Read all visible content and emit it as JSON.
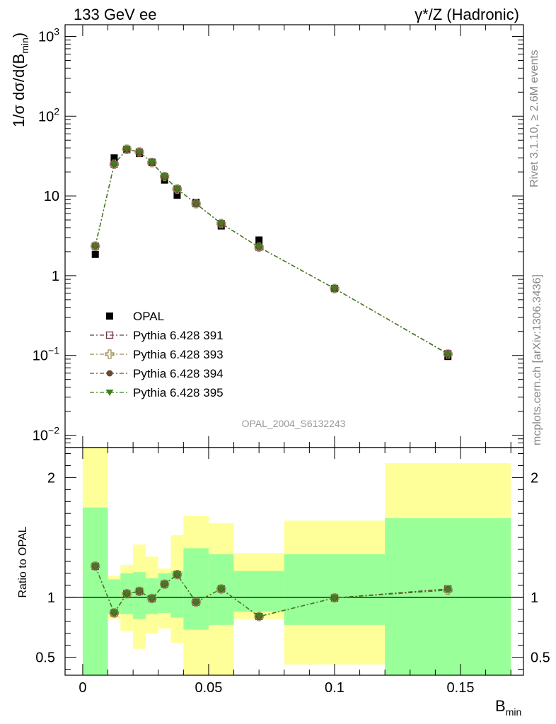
{
  "chart_data": [
    {
      "type": "scatter",
      "panel": "main",
      "title_left": "133 GeV ee",
      "title_right": "γ*/Z (Hadronic)",
      "ylabel": "1/σ dσ/d(B",
      "ylabel_sub": "min",
      "ylabel_end": ")",
      "yscale": "log",
      "ylim": [
        0.007,
        1400
      ],
      "xlim": [
        -0.007,
        0.175
      ],
      "watermark": "OPAL_2004_S6132243",
      "y_ticks": [
        {
          "value": 1000,
          "base": "10",
          "exp": "3"
        },
        {
          "value": 100,
          "base": "10",
          "exp": "2"
        },
        {
          "value": 10,
          "base": "10",
          "exp": ""
        },
        {
          "value": 1,
          "base": "1",
          "exp": ""
        },
        {
          "value": 0.1,
          "base": "10",
          "exp": "−1"
        },
        {
          "value": 0.01,
          "base": "10",
          "exp": "−2"
        }
      ],
      "series": [
        {
          "name": "OPAL",
          "style": "data",
          "color": "#000000",
          "x": [
            0.005,
            0.0125,
            0.0175,
            0.0225,
            0.0275,
            0.0325,
            0.0375,
            0.045,
            0.055,
            0.07,
            0.1,
            0.145
          ],
          "y": [
            1.85,
            30.0,
            38.0,
            34.0,
            26.5,
            15.8,
            10.2,
            8.3,
            4.2,
            2.8,
            0.69,
            0.097
          ]
        },
        {
          "name": "Pythia 6.428 391",
          "style": "open-square",
          "color": "#6b3a4a",
          "x": [
            0.005,
            0.0125,
            0.0175,
            0.0225,
            0.0275,
            0.0325,
            0.0375,
            0.045,
            0.055,
            0.07,
            0.1,
            0.145
          ],
          "y": [
            2.35,
            25.0,
            38.5,
            35.5,
            26.2,
            17.5,
            12.2,
            8.0,
            4.5,
            2.28,
            0.69,
            0.105
          ]
        },
        {
          "name": "Pythia 6.428 393",
          "style": "open-cross",
          "color": "#9a8a50",
          "x": [
            0.005,
            0.0125,
            0.0175,
            0.0225,
            0.0275,
            0.0325,
            0.0375,
            0.045,
            0.055,
            0.07,
            0.1,
            0.145
          ],
          "y": [
            2.35,
            25.0,
            38.5,
            35.5,
            26.2,
            17.5,
            12.2,
            8.0,
            4.5,
            2.28,
            0.69,
            0.104
          ]
        },
        {
          "name": "Pythia 6.428 394",
          "style": "filled-circle",
          "color": "#6b4a2a",
          "x": [
            0.005,
            0.0125,
            0.0175,
            0.0225,
            0.0275,
            0.0325,
            0.0375,
            0.045,
            0.055,
            0.07,
            0.1,
            0.145
          ],
          "y": [
            2.35,
            25.0,
            38.5,
            35.5,
            26.2,
            17.5,
            12.2,
            8.0,
            4.5,
            2.28,
            0.69,
            0.105
          ]
        },
        {
          "name": "Pythia 6.428 395",
          "style": "filled-triangle-down",
          "color": "#3f7f1f",
          "x": [
            0.005,
            0.0125,
            0.0175,
            0.0225,
            0.0275,
            0.0325,
            0.0375,
            0.045,
            0.055,
            0.07,
            0.1,
            0.145
          ],
          "y": [
            2.35,
            25.0,
            38.5,
            35.5,
            26.2,
            17.5,
            12.2,
            8.0,
            4.5,
            2.28,
            0.69,
            0.104
          ]
        }
      ]
    },
    {
      "type": "line",
      "panel": "ratio",
      "ylabel": "Ratio to OPAL",
      "xlabel": "B",
      "xlabel_sub": "min",
      "ylim": [
        0.35,
        2.25
      ],
      "xlim": [
        -0.007,
        0.175
      ],
      "x_ticks": [
        {
          "value": 0,
          "label": "0"
        },
        {
          "value": 0.05,
          "label": "0.05"
        },
        {
          "value": 0.1,
          "label": "0.1"
        },
        {
          "value": 0.15,
          "label": "0.15"
        }
      ],
      "y_ticks": [
        {
          "value": 2,
          "label": "2"
        },
        {
          "value": 1,
          "label": "1"
        },
        {
          "value": 0.5,
          "label": "0.5"
        }
      ],
      "bands": [
        {
          "x0": 0.0,
          "x1": 0.01,
          "green": [
            0.35,
            1.75
          ],
          "yellow": [
            0.35,
            2.25
          ]
        },
        {
          "x0": 0.01,
          "x1": 0.015,
          "green": [
            0.86,
            1.15
          ],
          "yellow": [
            0.82,
            1.18
          ]
        },
        {
          "x0": 0.015,
          "x1": 0.02,
          "green": [
            0.86,
            1.2
          ],
          "yellow": [
            0.72,
            1.27
          ]
        },
        {
          "x0": 0.02,
          "x1": 0.025,
          "green": [
            0.82,
            1.21
          ],
          "yellow": [
            0.57,
            1.44
          ]
        },
        {
          "x0": 0.025,
          "x1": 0.03,
          "green": [
            0.86,
            1.16
          ],
          "yellow": [
            0.7,
            1.34
          ]
        },
        {
          "x0": 0.03,
          "x1": 0.035,
          "green": [
            0.87,
            1.2
          ],
          "yellow": [
            0.74,
            1.24
          ]
        },
        {
          "x0": 0.035,
          "x1": 0.04,
          "green": [
            0.83,
            1.22
          ],
          "yellow": [
            0.62,
            1.52
          ]
        },
        {
          "x0": 0.04,
          "x1": 0.05,
          "green": [
            0.73,
            1.41
          ],
          "yellow": [
            0.35,
            1.68
          ]
        },
        {
          "x0": 0.05,
          "x1": 0.06,
          "green": [
            0.77,
            1.36
          ],
          "yellow": [
            0.35,
            1.62
          ]
        },
        {
          "x0": 0.06,
          "x1": 0.08,
          "green": [
            0.88,
            1.22
          ],
          "yellow": [
            0.82,
            1.37
          ]
        },
        {
          "x0": 0.08,
          "x1": 0.12,
          "green": [
            0.77,
            1.36
          ],
          "yellow": [
            0.44,
            1.64
          ]
        },
        {
          "x0": 0.12,
          "x1": 0.17,
          "green": [
            0.35,
            1.66
          ],
          "yellow": [
            0.35,
            2.12
          ]
        }
      ],
      "series": [
        {
          "name": "Pythia 6.428 391",
          "color": "#6b3a4a",
          "x": [
            0.005,
            0.0125,
            0.0175,
            0.0225,
            0.0275,
            0.0325,
            0.0375,
            0.045,
            0.055,
            0.07,
            0.1,
            0.145
          ],
          "y": [
            1.26,
            0.87,
            1.03,
            1.05,
            0.99,
            1.11,
            1.19,
            0.96,
            1.07,
            0.84,
            0.995,
            1.07
          ]
        },
        {
          "name": "Pythia 6.428 393",
          "color": "#9a8a50",
          "x": [
            0.005,
            0.0125,
            0.0175,
            0.0225,
            0.0275,
            0.0325,
            0.0375,
            0.045,
            0.055,
            0.07,
            0.1,
            0.145
          ],
          "y": [
            1.26,
            0.87,
            1.03,
            1.05,
            0.99,
            1.11,
            1.19,
            0.96,
            1.07,
            0.84,
            0.995,
            1.06
          ]
        },
        {
          "name": "Pythia 6.428 394",
          "color": "#6b4a2a",
          "x": [
            0.005,
            0.0125,
            0.0175,
            0.0225,
            0.0275,
            0.0325,
            0.0375,
            0.045,
            0.055,
            0.07,
            0.1,
            0.145
          ],
          "y": [
            1.26,
            0.87,
            1.03,
            1.05,
            0.99,
            1.11,
            1.19,
            0.96,
            1.07,
            0.84,
            0.995,
            1.07
          ]
        },
        {
          "name": "Pythia 6.428 395",
          "color": "#3f7f1f",
          "x": [
            0.005,
            0.0125,
            0.0175,
            0.0225,
            0.0275,
            0.0325,
            0.0375,
            0.045,
            0.055,
            0.07,
            0.1,
            0.145
          ],
          "y": [
            1.26,
            0.87,
            1.03,
            1.05,
            0.99,
            1.11,
            1.19,
            0.96,
            1.07,
            0.84,
            0.995,
            1.06
          ]
        }
      ]
    }
  ],
  "side_labels": {
    "rivet": "Rivet 3.1.10, ≥ 2.6M events",
    "mcplots": "mcplots.cern.ch [arXiv:1306.3436]"
  },
  "colors": {
    "band_green": "#99ff99",
    "band_yellow": "#ffff99"
  }
}
